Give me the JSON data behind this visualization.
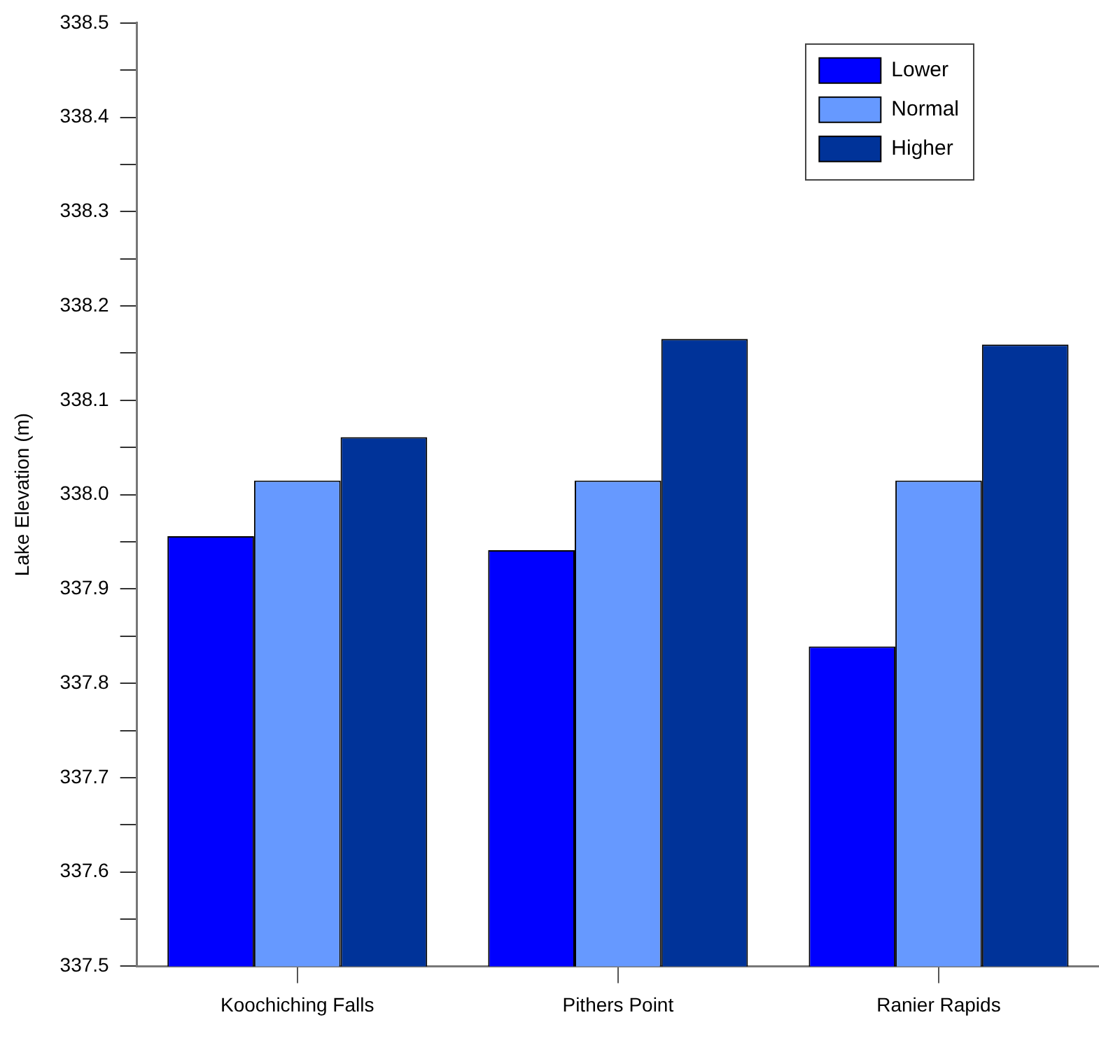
{
  "chart_data": {
    "type": "bar",
    "ylabel": "Lake Elevation (m)",
    "categories": [
      "Koochiching Falls",
      "Pithers Point",
      "Ranier Rapids"
    ],
    "series": [
      {
        "name": "Lower",
        "color": "#0000ff",
        "values": [
          337.956,
          337.941,
          337.839
        ]
      },
      {
        "name": "Normal",
        "color": "#6699ff",
        "values": [
          338.015,
          338.015,
          338.015
        ]
      },
      {
        "name": "Higher",
        "color": "#003399",
        "values": [
          338.061,
          338.165,
          338.159
        ]
      }
    ],
    "ylim": [
      337.5,
      338.5
    ],
    "yticks": [
      337.5,
      {
        "value": 337.55,
        "label": null
      },
      337.6,
      {
        "value": 337.65,
        "label": null
      },
      337.7,
      {
        "value": 337.75,
        "label": null
      },
      337.8,
      {
        "value": 337.85,
        "label": null
      },
      337.9,
      {
        "value": 337.95,
        "label": null
      },
      {
        "value": 338,
        "label": "338.0"
      },
      {
        "value": 338.05,
        "label": null
      },
      338.1,
      {
        "value": 338.15,
        "label": null
      },
      338.2,
      {
        "value": 338.25,
        "label": null
      },
      338.3,
      {
        "value": 338.35,
        "label": null
      },
      338.4,
      {
        "value": 338.45,
        "label": null
      },
      338.5
    ],
    "grid": false,
    "legend": "top right"
  }
}
